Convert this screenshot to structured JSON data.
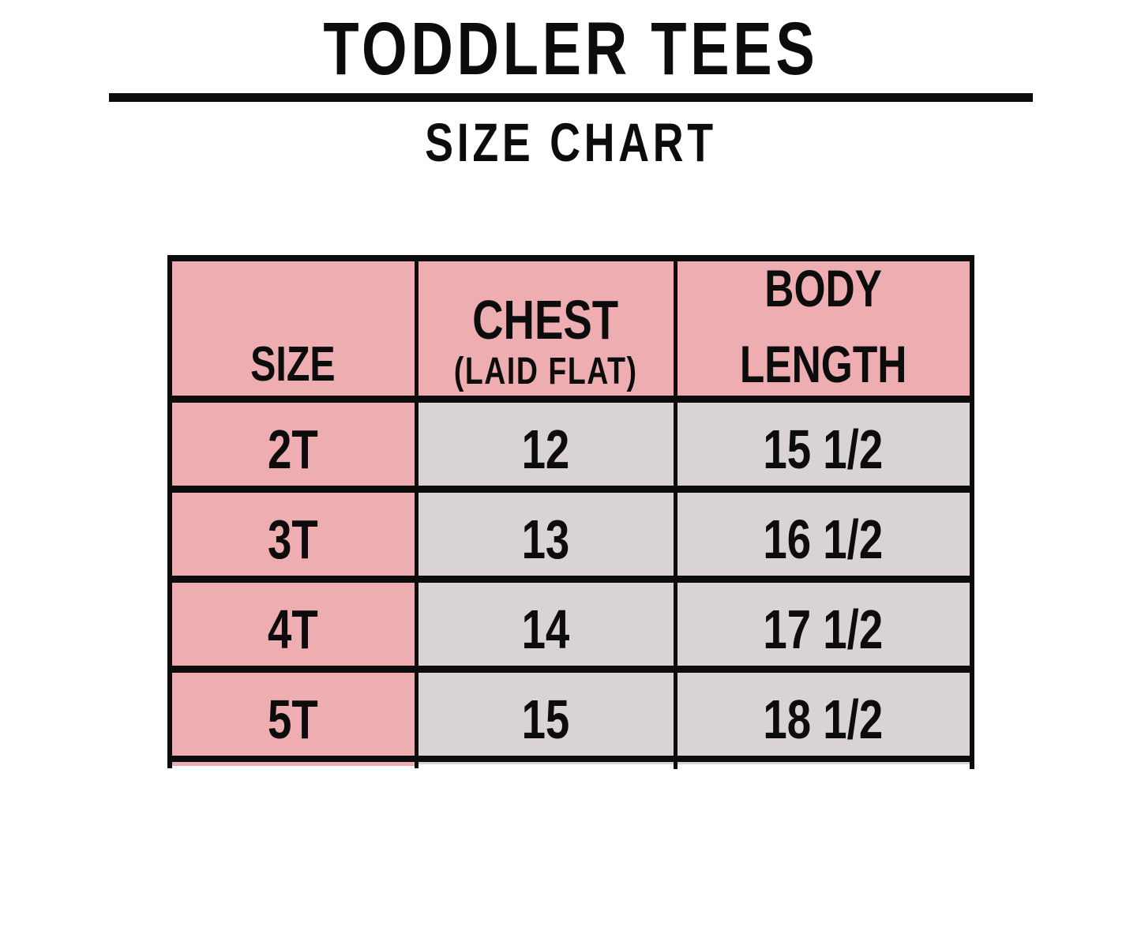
{
  "header": {
    "title": "TODDLER TEES",
    "subtitle": "SIZE CHART"
  },
  "table": {
    "columns": [
      {
        "label": "SIZE"
      },
      {
        "label": "CHEST",
        "sublabel": "(LAID FLAT)"
      },
      {
        "label_line1": "BODY",
        "label_line2": "LENGTH"
      }
    ],
    "rows": [
      {
        "size": "2T",
        "chest": "12",
        "body_length": "15 1/2"
      },
      {
        "size": "3T",
        "chest": "13",
        "body_length": "16 1/2"
      },
      {
        "size": "4T",
        "chest": "14",
        "body_length": "17 1/2"
      },
      {
        "size": "5T",
        "chest": "15",
        "body_length": "18 1/2"
      }
    ]
  },
  "chart_data": {
    "type": "table",
    "title": "TODDLER TEES",
    "subtitle": "SIZE CHART",
    "columns": [
      "SIZE",
      "CHEST (LAID FLAT)",
      "BODY LENGTH"
    ],
    "rows": [
      [
        "2T",
        "12",
        "15 1/2"
      ],
      [
        "3T",
        "13",
        "16 1/2"
      ],
      [
        "4T",
        "14",
        "17 1/2"
      ],
      [
        "5T",
        "15",
        "18 1/2"
      ]
    ]
  },
  "colors": {
    "header_pink": "#eeadb0",
    "cell_gray": "#dad3d3",
    "border_black": "#0c0c0c",
    "page_bg": "#ffffff"
  }
}
